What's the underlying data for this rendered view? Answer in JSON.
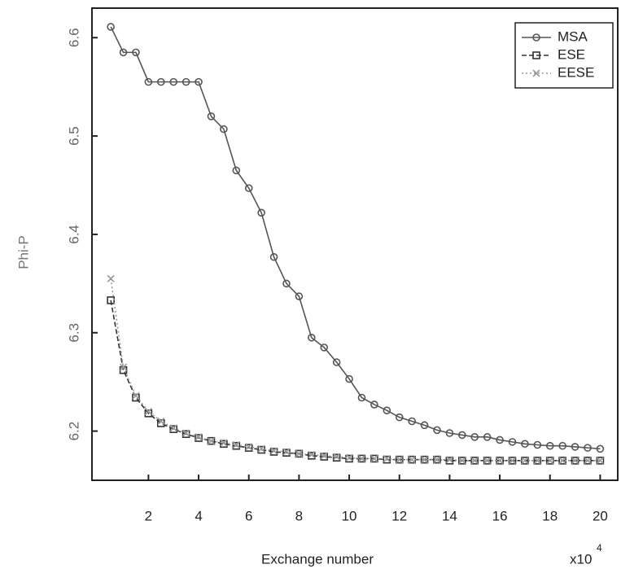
{
  "chart_data": {
    "type": "line",
    "x_label": "Exchange number",
    "y_label": "Phi-P",
    "x_multiplier": {
      "base": "x10",
      "exponent": "4"
    },
    "x": [
      0.5,
      1,
      1.5,
      2,
      2.5,
      3,
      3.5,
      4,
      4.5,
      5,
      5.5,
      6,
      6.5,
      7,
      7.5,
      8,
      8.5,
      9,
      9.5,
      10,
      10.5,
      11,
      11.5,
      12,
      12.5,
      13,
      13.5,
      14,
      14.5,
      15,
      15.5,
      16,
      16.5,
      17,
      17.5,
      18,
      18.5,
      19,
      19.5,
      20
    ],
    "series": [
      {
        "name": "MSA",
        "color": "#555555",
        "marker": "circle",
        "dash": "solid",
        "values": [
          6.611,
          6.585,
          6.585,
          6.555,
          6.555,
          6.555,
          6.555,
          6.555,
          6.52,
          6.507,
          6.465,
          6.447,
          6.422,
          6.377,
          6.35,
          6.337,
          6.295,
          6.285,
          6.27,
          6.253,
          6.234,
          6.227,
          6.221,
          6.214,
          6.21,
          6.206,
          6.201,
          6.198,
          6.196,
          6.194,
          6.194,
          6.191,
          6.189,
          6.187,
          6.186,
          6.185,
          6.185,
          6.184,
          6.183,
          6.182
        ]
      },
      {
        "name": "ESE",
        "color": "#333333",
        "marker": "square",
        "dash": "dashed",
        "values": [
          6.333,
          6.262,
          6.234,
          6.218,
          6.208,
          6.202,
          6.197,
          6.193,
          6.19,
          6.187,
          6.185,
          6.183,
          6.181,
          6.179,
          6.178,
          6.177,
          6.175,
          6.174,
          6.173,
          6.172,
          6.172,
          6.172,
          6.171,
          6.171,
          6.171,
          6.171,
          6.171,
          6.17,
          6.17,
          6.17,
          6.17,
          6.17,
          6.17,
          6.17,
          6.17,
          6.17,
          6.17,
          6.17,
          6.17,
          6.17
        ]
      },
      {
        "name": "EESE",
        "color": "#999999",
        "marker": "x",
        "dash": "dotted",
        "values": [
          6.355,
          6.265,
          6.236,
          6.22,
          6.21,
          6.203,
          6.198,
          6.194,
          6.19,
          6.188,
          6.186,
          6.184,
          6.182,
          6.18,
          6.179,
          6.177,
          6.176,
          6.175,
          6.174,
          6.173,
          6.172,
          6.172,
          6.172,
          6.171,
          6.171,
          6.171,
          6.171,
          6.171,
          6.17,
          6.17,
          6.17,
          6.17,
          6.17,
          6.17,
          6.17,
          6.17,
          6.17,
          6.17,
          6.17,
          6.17
        ]
      }
    ],
    "xlim": [
      -0.25,
      20.7
    ],
    "xticks": [
      2,
      4,
      6,
      8,
      10,
      12,
      14,
      16,
      18,
      20
    ],
    "ylim": [
      6.15,
      6.63
    ],
    "yticks": [
      6.2,
      6.3,
      6.4,
      6.5,
      6.6
    ],
    "legend": "top-right",
    "grid": false
  }
}
